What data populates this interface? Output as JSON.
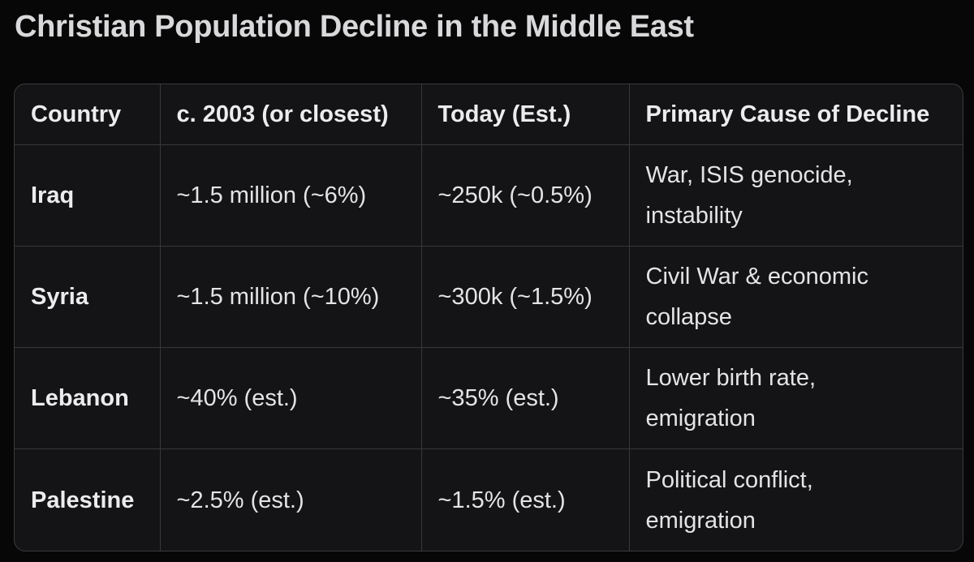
{
  "title": "Christian Population Decline in the Middle East",
  "table": {
    "headers": [
      "Country",
      "c. 2003 (or closest)",
      "Today (Est.)",
      "Primary Cause of Decline"
    ],
    "rows": [
      {
        "country": "Iraq",
        "then": "~1.5 million (~6%)",
        "now": "~250k (~0.5%)",
        "cause_line1": "War, ISIS genocide,",
        "cause_line2": "instability"
      },
      {
        "country": "Syria",
        "then": "~1.5 million (~10%)",
        "now": "~300k (~1.5%)",
        "cause_line1": "Civil War & economic",
        "cause_line2": "collapse"
      },
      {
        "country": "Lebanon",
        "then": "~40% (est.)",
        "now": "~35% (est.)",
        "cause_line1": "Lower birth rate,",
        "cause_line2": "emigration"
      },
      {
        "country": "Palestine",
        "then": "~2.5% (est.)",
        "now": "~1.5% (est.)",
        "cause_line1": "Political conflict,",
        "cause_line2": "emigration"
      }
    ]
  }
}
